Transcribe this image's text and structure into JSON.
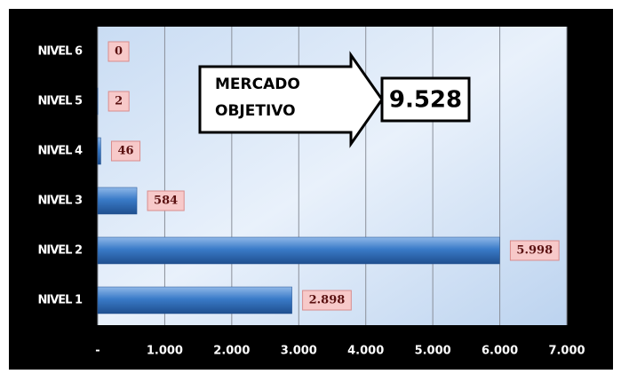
{
  "chart_data": {
    "type": "bar",
    "orientation": "horizontal",
    "categories": [
      "NIVEL 1",
      "NIVEL 2",
      "NIVEL 3",
      "NIVEL 4",
      "NIVEL 5",
      "NIVEL 6"
    ],
    "values": [
      2898,
      5998,
      584,
      46,
      2,
      0
    ],
    "value_labels": [
      "2.898",
      "5.998",
      "584",
      "46",
      "2",
      "0"
    ],
    "color": "#3a7bc8",
    "xlim": [
      0,
      7000
    ],
    "xticks": [
      {
        "value": 0,
        "label": "-"
      },
      {
        "value": 1000,
        "label": "1.000"
      },
      {
        "value": 2000,
        "label": "2.000"
      },
      {
        "value": 3000,
        "label": "3.000"
      },
      {
        "value": 4000,
        "label": "4.000"
      },
      {
        "value": 5000,
        "label": "5.000"
      },
      {
        "value": 6000,
        "label": "6.000"
      },
      {
        "value": 7000,
        "label": "7.000"
      }
    ],
    "grid": true,
    "annotation": "MERCADO OBJETIVO",
    "total": 9528,
    "total_label": "9.528"
  }
}
